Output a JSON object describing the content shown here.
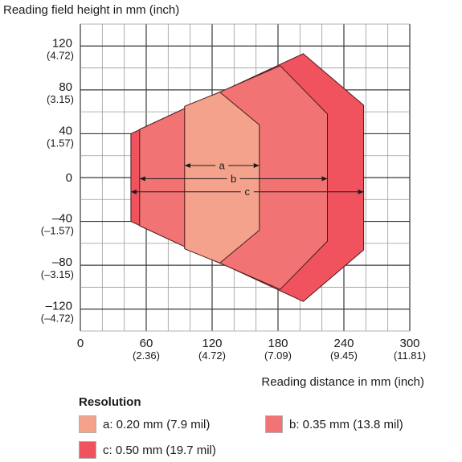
{
  "chart_data": {
    "type": "area",
    "title": "",
    "ylabel": "Reading field height in mm (inch)",
    "xlabel": "Reading distance in mm (inch)",
    "xlim": [
      0,
      300
    ],
    "ylim": [
      -140,
      140
    ],
    "grid": true,
    "x_ticks": [
      {
        "value": 0,
        "label": "0",
        "sub": ""
      },
      {
        "value": 60,
        "label": "60",
        "sub": "(2.36)"
      },
      {
        "value": 120,
        "label": "120",
        "sub": "(4.72)"
      },
      {
        "value": 180,
        "label": "180",
        "sub": "(7.09)"
      },
      {
        "value": 240,
        "label": "240",
        "sub": "(9.45)"
      },
      {
        "value": 300,
        "label": "300",
        "sub": "(11.81)"
      }
    ],
    "y_ticks": [
      {
        "value": 120,
        "label": "120",
        "sub": "(4.72)"
      },
      {
        "value": 80,
        "label": "80",
        "sub": "(3.15)"
      },
      {
        "value": 40,
        "label": "40",
        "sub": "(1.57)"
      },
      {
        "value": 0,
        "label": "0",
        "sub": ""
      },
      {
        "value": -40,
        "label": "–40",
        "sub": "(–1.57)"
      },
      {
        "value": -80,
        "label": "–80",
        "sub": "(–3.15)"
      },
      {
        "value": -120,
        "label": "–120",
        "sub": "(–4.72)"
      }
    ],
    "series": [
      {
        "key": "c",
        "color": "#f0525e",
        "polygon": [
          [
            46,
            40
          ],
          [
            46,
            -40
          ],
          [
            203,
            -113
          ],
          [
            258,
            -66
          ],
          [
            258,
            66
          ],
          [
            203,
            113
          ]
        ],
        "range_y": -13
      },
      {
        "key": "b",
        "color": "#f17373",
        "polygon": [
          [
            54,
            44
          ],
          [
            54,
            -44
          ],
          [
            127,
            -78
          ],
          [
            182,
            -102
          ],
          [
            225,
            -58
          ],
          [
            225,
            58
          ],
          [
            182,
            102
          ],
          [
            127,
            78
          ]
        ],
        "range_y": -1
      },
      {
        "key": "a",
        "color": "#f4a28c",
        "polygon": [
          [
            95,
            65
          ],
          [
            127,
            78
          ],
          [
            163,
            48
          ],
          [
            163,
            -48
          ],
          [
            127,
            -78
          ],
          [
            95,
            -65
          ]
        ],
        "range_y": 11
      }
    ],
    "range_lines": [
      {
        "key": "a",
        "label": "a",
        "x0": 95,
        "x1": 163,
        "y": 11
      },
      {
        "key": "b",
        "label": "b",
        "x0": 54,
        "x1": 225,
        "y": -1
      },
      {
        "key": "c",
        "label": "c",
        "x0": 46,
        "x1": 258,
        "y": -13
      }
    ]
  },
  "legend": {
    "title": "Resolution",
    "items": [
      {
        "key": "a",
        "label": "a: 0.20 mm (7.9 mil)",
        "color": "#f4a28c"
      },
      {
        "key": "b",
        "label": "b: 0.35 mm (13.8 mil)",
        "color": "#f17373"
      },
      {
        "key": "c",
        "label": "c: 0.50 mm (19.7 mil)",
        "color": "#f0525e"
      }
    ]
  }
}
